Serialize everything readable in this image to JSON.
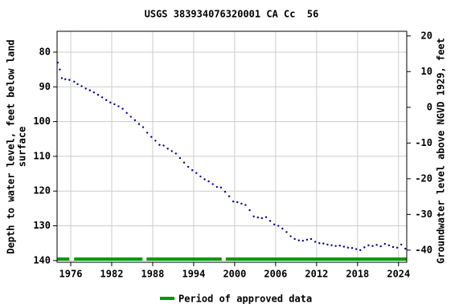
{
  "chart_data": {
    "type": "scatter",
    "title": "USGS 383934076320001 CA Cc  56",
    "y_label_lines": [
      "Depth to water level, feet below land",
      "surface"
    ],
    "y2_label": "Groundwater level above NGVD 1929, feet",
    "color": "#00008b",
    "x": [
      1974.1,
      1974.4,
      1974.7,
      1975.2,
      1975.8,
      1976.5,
      1977.0,
      1977.6,
      1978.2,
      1978.8,
      1979.4,
      1980.0,
      1980.6,
      1981.2,
      1981.8,
      1982.4,
      1983.0,
      1983.6,
      1984.2,
      1984.8,
      1985.4,
      1986.0,
      1986.6,
      1987.2,
      1987.8,
      1988.4,
      1989.0,
      1989.6,
      1990.2,
      1990.8,
      1991.4,
      1992.0,
      1992.6,
      1993.2,
      1993.8,
      1994.4,
      1995.0,
      1995.6,
      1996.2,
      1996.8,
      1997.4,
      1998.0,
      1998.6,
      1999.2,
      1999.8,
      2000.4,
      2001.0,
      2001.6,
      2002.2,
      2002.8,
      2003.4,
      2004.0,
      2004.6,
      2005.2,
      2005.8,
      2006.4,
      2007.0,
      2007.6,
      2008.2,
      2008.8,
      2009.4,
      2010.0,
      2010.6,
      2011.2,
      2011.8,
      2012.4,
      2013.0,
      2013.6,
      2014.2,
      2014.8,
      2015.4,
      2016.0,
      2016.6,
      2017.2,
      2017.8,
      2018.4,
      2019.0,
      2019.6,
      2020.2,
      2020.8,
      2021.4,
      2022.0,
      2022.6,
      2023.2,
      2023.8,
      2024.4,
      2025.0
    ],
    "values": [
      83,
      85,
      87.5,
      87.8,
      88,
      88.5,
      89.2,
      89.8,
      90.5,
      91,
      91.6,
      92.3,
      93,
      93.8,
      94.5,
      95,
      95.6,
      96.3,
      97.5,
      98.6,
      99.6,
      100.7,
      101.6,
      103.2,
      104.4,
      105.5,
      106.7,
      106.9,
      107.8,
      108.5,
      109.2,
      110.5,
      111.8,
      113,
      114,
      114.8,
      115.8,
      116.6,
      117.2,
      118,
      118.8,
      119,
      120.2,
      121.5,
      123,
      123.2,
      123.6,
      124,
      125.5,
      127.3,
      127.6,
      127.8,
      127.5,
      128.6,
      129.6,
      130,
      130.8,
      131.8,
      133,
      133.8,
      134.2,
      134.3,
      134,
      133.8,
      134.6,
      135,
      135.1,
      135.4,
      135.6,
      135.8,
      135.7,
      136,
      136.3,
      136.4,
      136.7,
      137,
      136.2,
      135.6,
      135.8,
      135.5,
      135.9,
      135.2,
      135.6,
      136.1,
      136.3,
      135.4,
      136.6
    ],
    "xlim": [
      1974,
      2025.2
    ],
    "xticks": [
      1976,
      1982,
      1988,
      1994,
      2000,
      2006,
      2012,
      2018,
      2024
    ],
    "ylim": [
      74,
      140.5
    ],
    "yticks": [
      80,
      90,
      100,
      110,
      120,
      130,
      140
    ],
    "y_inverted": true,
    "y2lim": [
      -43.4,
      21.3
    ],
    "y2ticks": [
      20,
      10,
      0,
      -10,
      -20,
      -30,
      -40
    ],
    "grid": true,
    "approved_periods": [
      [
        1974,
        1975.8
      ],
      [
        1976.5,
        1986.5
      ],
      [
        1987.1,
        1998.1
      ],
      [
        1998.7,
        2025.2
      ]
    ],
    "approved_color": "#009900",
    "legend_label": "Period of approved data"
  }
}
